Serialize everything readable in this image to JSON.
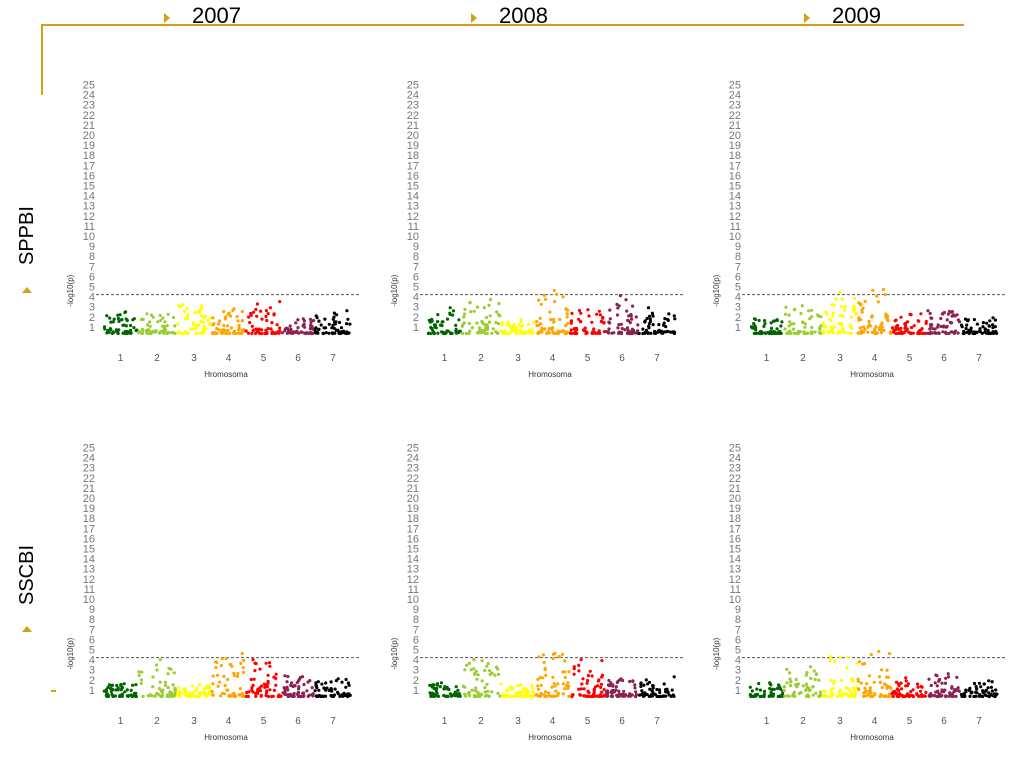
{
  "header": {
    "years": [
      "2007",
      "2008",
      "2009"
    ],
    "accent_color": "#D4A017"
  },
  "rows": [
    "SPPBI",
    "SSCBI"
  ],
  "chart_data": {
    "type": "scatter",
    "subtype": "manhattan",
    "ylabel": "-log10(p)",
    "xlabel": "Hromosoma",
    "chromosomes": [
      "1",
      "2",
      "3",
      "4",
      "5",
      "6",
      "7"
    ],
    "y_ticks": [
      1,
      2,
      3,
      4,
      5,
      6,
      7,
      8,
      9,
      10,
      11,
      12,
      13,
      14,
      15,
      16,
      17,
      18,
      19,
      20,
      21,
      22,
      23,
      24,
      25
    ],
    "ylim": [
      0,
      25.5
    ],
    "threshold": 4.2,
    "chromosome_colors": [
      "#006400",
      "#9ACD32",
      "#FFFF00",
      "#FFA500",
      "#FF0000",
      "#8B2252",
      "#000000"
    ],
    "panels": [
      {
        "row": "SPPBI",
        "year": "2007",
        "chromosome_peaks": [
          2.5,
          2.3,
          3.2,
          2.8,
          3.5,
          1.8,
          2.6
        ]
      },
      {
        "row": "SPPBI",
        "year": "2008",
        "chromosome_peaks": [
          2.9,
          3.7,
          1.7,
          4.6,
          2.7,
          4.1,
          2.9
        ]
      },
      {
        "row": "SPPBI",
        "year": "2009",
        "chromosome_peaks": [
          1.8,
          3.1,
          4.4,
          4.7,
          2.3,
          2.6,
          1.9
        ]
      },
      {
        "row": "SSCBI",
        "year": "2007",
        "chromosome_peaks": [
          1.6,
          4.0,
          1.5,
          4.6,
          4.0,
          2.4,
          2.1
        ]
      },
      {
        "row": "SSCBI",
        "year": "2008",
        "chromosome_peaks": [
          1.7,
          4.0,
          1.6,
          4.6,
          4.0,
          2.1,
          2.3
        ]
      },
      {
        "row": "SSCBI",
        "year": "2009",
        "chromosome_peaks": [
          1.7,
          3.3,
          4.3,
          4.8,
          2.2,
          2.6,
          1.9
        ]
      }
    ]
  }
}
